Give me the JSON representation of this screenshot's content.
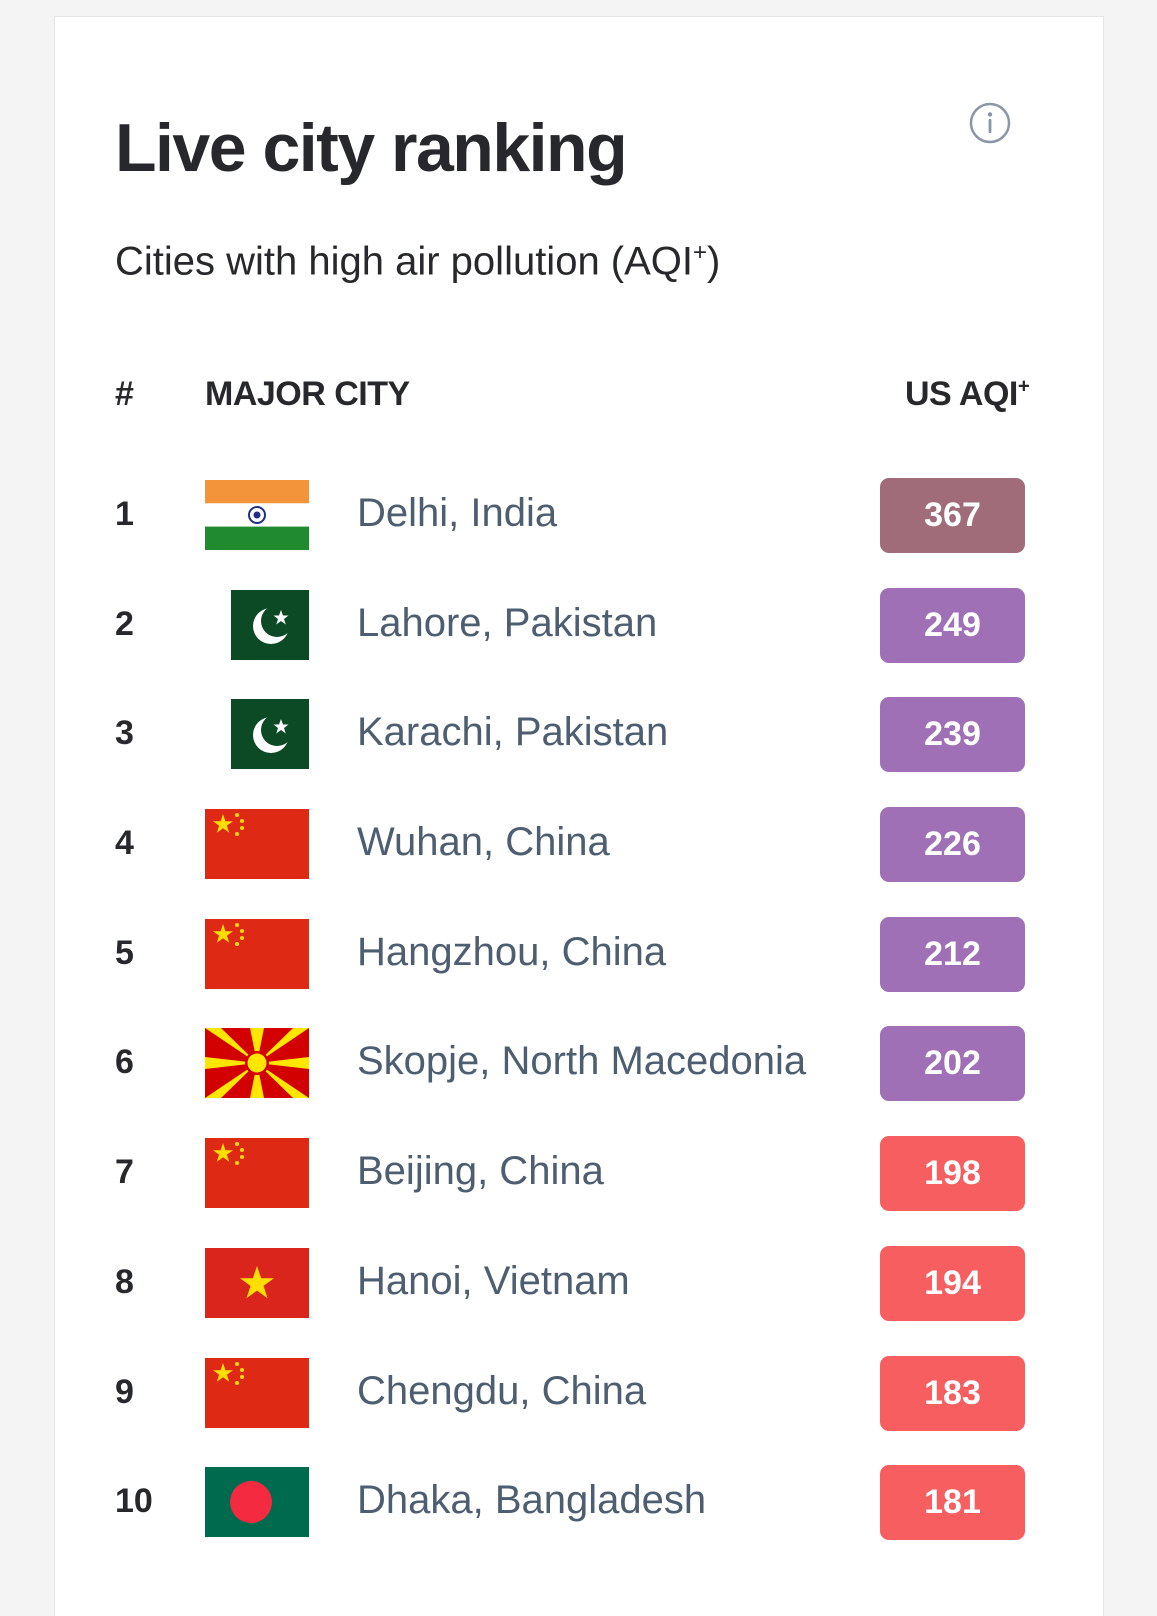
{
  "header": {
    "title": "Live city ranking",
    "subtitle": "Cities with high air pollution (AQI",
    "subtitle_sup": "+",
    "subtitle_end": ")",
    "info_icon": "info-circle-icon"
  },
  "table": {
    "col_rank": "#",
    "col_city": "MAJOR CITY",
    "col_aqi": "US AQI",
    "col_aqi_sup": "+"
  },
  "colors": {
    "hazardous": "#a06c7a",
    "very_unhealthy": "#a070b6",
    "unhealthy": "#f65e5f"
  },
  "rows": [
    {
      "rank": "1",
      "city": "Delhi, India",
      "aqi": "367",
      "flag": "india",
      "level": "hazardous"
    },
    {
      "rank": "2",
      "city": "Lahore, Pakistan",
      "aqi": "249",
      "flag": "pakistan",
      "level": "very_unhealthy"
    },
    {
      "rank": "3",
      "city": "Karachi, Pakistan",
      "aqi": "239",
      "flag": "pakistan",
      "level": "very_unhealthy"
    },
    {
      "rank": "4",
      "city": "Wuhan, China",
      "aqi": "226",
      "flag": "china",
      "level": "very_unhealthy"
    },
    {
      "rank": "5",
      "city": "Hangzhou, China",
      "aqi": "212",
      "flag": "china",
      "level": "very_unhealthy"
    },
    {
      "rank": "6",
      "city": "Skopje, North Macedonia",
      "aqi": "202",
      "flag": "north-macedonia",
      "level": "very_unhealthy"
    },
    {
      "rank": "7",
      "city": "Beijing, China",
      "aqi": "198",
      "flag": "china",
      "level": "unhealthy"
    },
    {
      "rank": "8",
      "city": "Hanoi, Vietnam",
      "aqi": "194",
      "flag": "vietnam",
      "level": "unhealthy"
    },
    {
      "rank": "9",
      "city": "Chengdu, China",
      "aqi": "183",
      "flag": "china",
      "level": "unhealthy"
    },
    {
      "rank": "10",
      "city": "Dhaka, Bangladesh",
      "aqi": "181",
      "flag": "bangladesh",
      "level": "unhealthy"
    }
  ]
}
